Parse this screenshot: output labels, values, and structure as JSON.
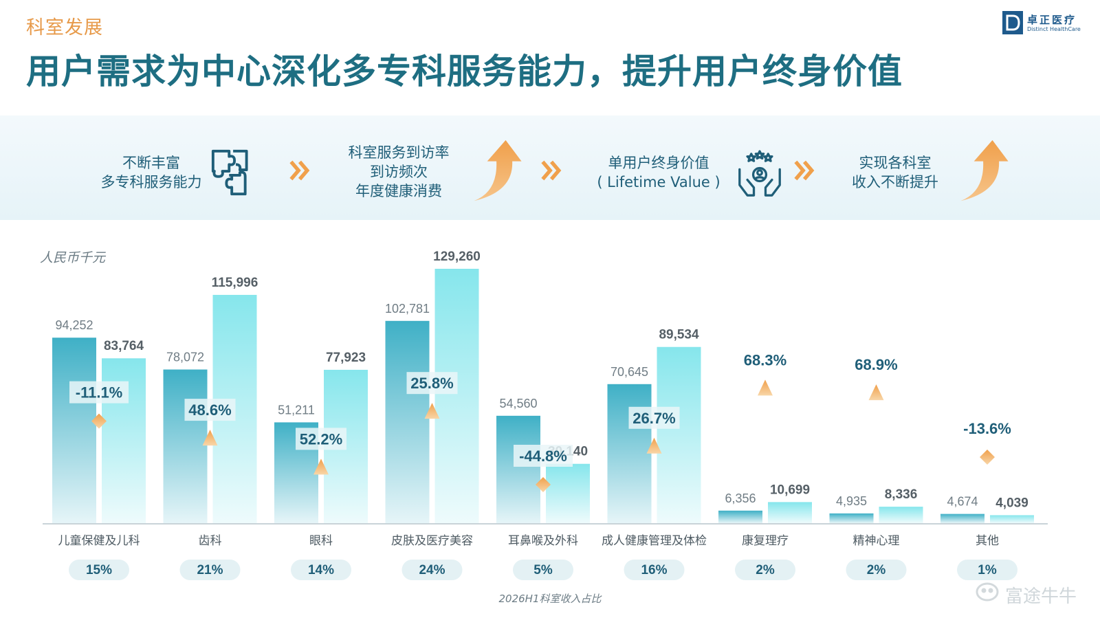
{
  "header": {
    "section_label": "科室发展",
    "headline": "用户需求为中心深化多专科服务能力，提升用户终身价值",
    "logo_cn": "卓正医疗",
    "logo_en": "Distinct HealthCare"
  },
  "flow": {
    "step1_line1": "不断丰富",
    "step1_line2": "多专科服务能力",
    "step2_line1": "科室服务到访率",
    "step2_line2": "到访频次",
    "step2_line3": "年度健康消费",
    "step3_line1": "单用户终身价值",
    "step3_line2": "( Lifetime Value )",
    "step4_line1": "实现各科室",
    "step4_line2": "收入不断提升",
    "icons": [
      "puzzle-icon",
      "chevron-double-right-icon",
      "up-arrow-icon",
      "hands-people-icon"
    ],
    "accent_color": "#f0a04b"
  },
  "chart_data": {
    "type": "bar",
    "unit_label": "人民币千元",
    "footnote": "2026H1科室收入占比",
    "colors": {
      "prior": "#45b6c9",
      "current": "#8fe8ee",
      "increase_marker": "#f0a04b",
      "decrease_marker": "#f0a04b"
    },
    "categories": [
      "儿童保健及儿科",
      "齿科",
      "眼科",
      "皮肤及医疗美容",
      "耳鼻喉及外科",
      "成人健康管理及体检",
      "康复理疗",
      "精神心理",
      "其他"
    ],
    "series": [
      {
        "values": [
          94252,
          78072,
          51211,
          102781,
          54560,
          70645,
          6356,
          4935,
          4674
        ]
      },
      {
        "values": [
          83764,
          115996,
          77923,
          129260,
          30140,
          89534,
          10699,
          8336,
          4039
        ]
      }
    ],
    "value_labels_prior": [
      "94,252",
      "78,072",
      "51,211",
      "102,781",
      "54,560",
      "70,645",
      "6,356",
      "4,935",
      "4,674"
    ],
    "value_labels_current": [
      "83,764",
      "115,996",
      "77,923",
      "129,260",
      "30,140",
      "89,534",
      "10,699",
      "8,336",
      "4,039"
    ],
    "growth_labels": [
      "-11.1%",
      "48.6%",
      "52.2%",
      "25.8%",
      "-44.8%",
      "26.7%",
      "68.3%",
      "68.9%",
      "-13.6%"
    ],
    "growth_direction": [
      "down",
      "up",
      "up",
      "up",
      "down",
      "up",
      "up",
      "up",
      "down"
    ],
    "share_labels": [
      "15%",
      "21%",
      "14%",
      "24%",
      "5%",
      "16%",
      "2%",
      "2%",
      "1%"
    ],
    "ylim": [
      0,
      135000
    ]
  },
  "watermark": "富途牛牛"
}
